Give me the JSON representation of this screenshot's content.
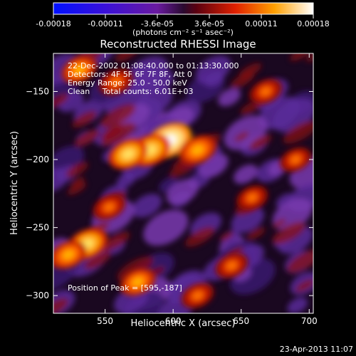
{
  "colorbar": {
    "ticks": [
      "-0.00018",
      "-0.00011",
      "-3.6e-05",
      "3.6e-05",
      "0.00011",
      "0.00018"
    ],
    "units_label": "(photons cm⁻² s⁻¹ asec⁻²)",
    "range": [
      -0.00018,
      0.00018
    ]
  },
  "chart_data": {
    "type": "heatmap",
    "title": "Reconstructed RHESSI Image",
    "xlabel": "Heliocentric X (arcsec)",
    "ylabel": "Heliocentric Y (arcsec)",
    "xlim": [
      512,
      703
    ],
    "ylim": [
      -313,
      -122
    ],
    "x_ticks": [
      550,
      600,
      650,
      700
    ],
    "y_ticks": [
      -150,
      -200,
      -250,
      -300
    ],
    "info_lines": [
      "22-Dec-2002 01:08:40.000 to 01:13:30.000",
      "Detectors: 4F 5F 6F 7F 8F, Att 0",
      "Energy Range: 25.0 - 50.0 keV",
      "Clean     Total counts: 6.01E+03"
    ],
    "peak_label": "Position of Peak = [595,-187]",
    "peak": [
      595,
      -187
    ],
    "bright_sources": [
      {
        "x": 597,
        "y": -186,
        "rel": 1.0
      },
      {
        "x": 583,
        "y": -193,
        "rel": 0.85
      },
      {
        "x": 567,
        "y": -196,
        "rel": 0.75
      },
      {
        "x": 618,
        "y": -193,
        "rel": 0.7
      },
      {
        "x": 537,
        "y": -262,
        "rel": 0.8
      },
      {
        "x": 523,
        "y": -270,
        "rel": 0.65
      },
      {
        "x": 574,
        "y": -290,
        "rel": 0.6
      },
      {
        "x": 531,
        "y": -134,
        "rel": 0.6
      },
      {
        "x": 558,
        "y": -143,
        "rel": 0.55
      },
      {
        "x": 658,
        "y": -228,
        "rel": 0.45
      },
      {
        "x": 668,
        "y": -150,
        "rel": 0.5
      },
      {
        "x": 643,
        "y": -278,
        "rel": 0.5
      },
      {
        "x": 690,
        "y": -200,
        "rel": 0.45
      },
      {
        "x": 553,
        "y": -235,
        "rel": 0.5
      },
      {
        "x": 618,
        "y": -300,
        "rel": 0.5
      }
    ]
  },
  "footer": {
    "timestamp": "23-Apr-2013 11:07"
  }
}
